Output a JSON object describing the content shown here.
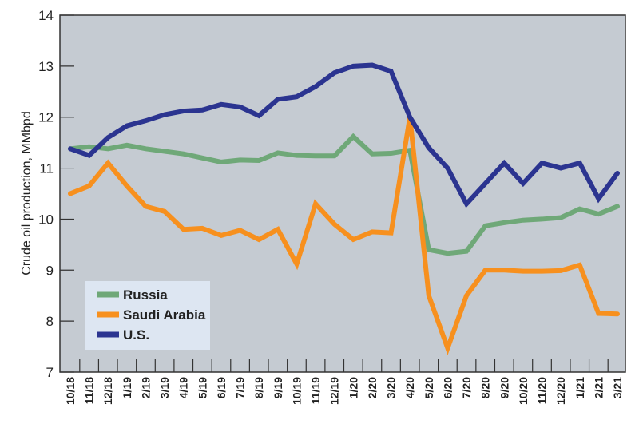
{
  "chart_data": {
    "type": "line",
    "title": "",
    "xlabel": "",
    "ylabel": "Crude oil production, MMbpd",
    "ylim": [
      7,
      14
    ],
    "yticks": [
      7,
      8,
      9,
      10,
      11,
      12,
      13,
      14
    ],
    "grid": false,
    "legend_position": "bottom-left",
    "categories": [
      "10/18",
      "11/18",
      "12/18",
      "1/19",
      "2/19",
      "3/19",
      "4/19",
      "5/19",
      "6/19",
      "7/19",
      "8/19",
      "9/19",
      "10/19",
      "11/19",
      "12/19",
      "1/20",
      "2/20",
      "3/20",
      "4/20",
      "5/20",
      "6/20",
      "7/20",
      "8/20",
      "9/20",
      "10/20",
      "11/20",
      "12/20",
      "1/21",
      "2/21",
      "3/21"
    ],
    "series": [
      {
        "name": "Russia",
        "color": "#6fa878",
        "values": [
          11.38,
          11.42,
          11.38,
          11.45,
          11.38,
          11.33,
          11.28,
          11.2,
          11.12,
          11.16,
          11.15,
          11.3,
          11.25,
          11.24,
          11.24,
          11.62,
          11.28,
          11.29,
          11.35,
          9.4,
          9.33,
          9.37,
          9.87,
          9.93,
          9.98,
          10.0,
          10.03,
          10.2,
          10.1,
          10.25
        ]
      },
      {
        "name": "Saudi Arabia",
        "color": "#f7901e",
        "values": [
          10.5,
          10.65,
          11.1,
          10.65,
          10.25,
          10.15,
          9.8,
          9.82,
          9.68,
          9.78,
          9.6,
          9.8,
          9.12,
          10.3,
          9.9,
          9.6,
          9.75,
          9.73,
          12.0,
          8.5,
          7.47,
          8.5,
          9.0,
          9.0,
          8.98,
          8.98,
          8.99,
          9.1,
          8.15,
          8.14
        ]
      },
      {
        "name": "U.S.",
        "color": "#2b3490",
        "values": [
          11.38,
          11.25,
          11.6,
          11.83,
          11.93,
          12.05,
          12.12,
          12.14,
          12.25,
          12.2,
          12.03,
          12.35,
          12.4,
          12.6,
          12.87,
          13.0,
          13.02,
          12.9,
          12.0,
          11.4,
          11.0,
          10.3,
          10.7,
          11.1,
          10.7,
          11.1,
          11.0,
          11.1,
          10.4,
          10.9
        ]
      }
    ]
  }
}
